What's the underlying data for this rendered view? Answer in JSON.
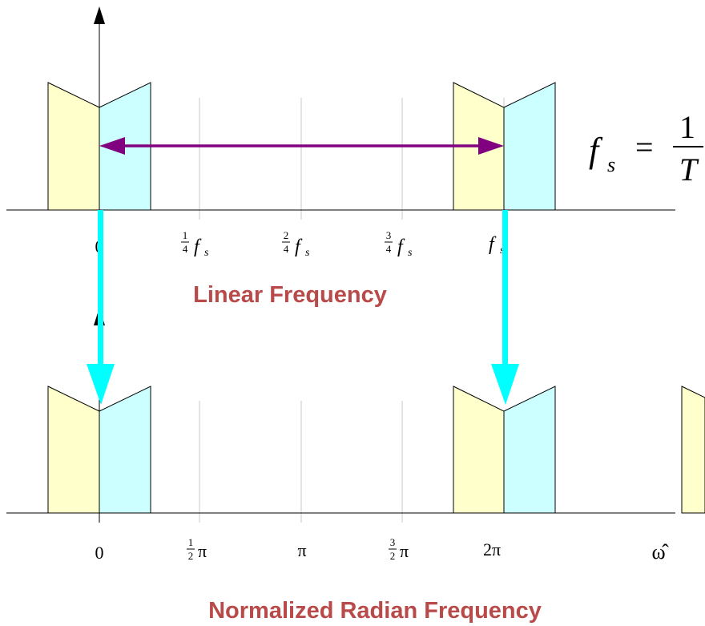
{
  "colors": {
    "left_half_fill": "#ffffcc",
    "right_half_fill": "#ccffff",
    "shape_stroke": "#000000",
    "gridline": "#c8c8c8",
    "double_arrow": "#800080",
    "mapping_arrow": "#00ffff",
    "caption": "#b94a4a",
    "omega_hat": "#800080"
  },
  "top_plot": {
    "caption": "Linear Frequency",
    "ticks": {
      "zero": "0",
      "q1": {
        "num": "1",
        "den": "4",
        "sym": "f",
        "sub": "s"
      },
      "q2": {
        "num": "2",
        "den": "4",
        "sym": "f",
        "sub": "s"
      },
      "q3": {
        "num": "3",
        "den": "4",
        "sym": "f",
        "sub": "s"
      },
      "fs": {
        "sym": "f",
        "sub": "s"
      }
    },
    "formula": {
      "lhs": "f",
      "sub": "s",
      "eq": "=",
      "num": "1",
      "den": "T"
    }
  },
  "bottom_plot": {
    "caption": "Normalized Radian Frequency",
    "ticks": {
      "zero": "0",
      "half_pi": {
        "num": "1",
        "den": "2",
        "sym": "π"
      },
      "pi": "π",
      "three_half_pi": {
        "num": "3",
        "den": "2",
        "sym": "π"
      },
      "two_pi": "2π"
    },
    "axis_symbol": "ω̂"
  }
}
